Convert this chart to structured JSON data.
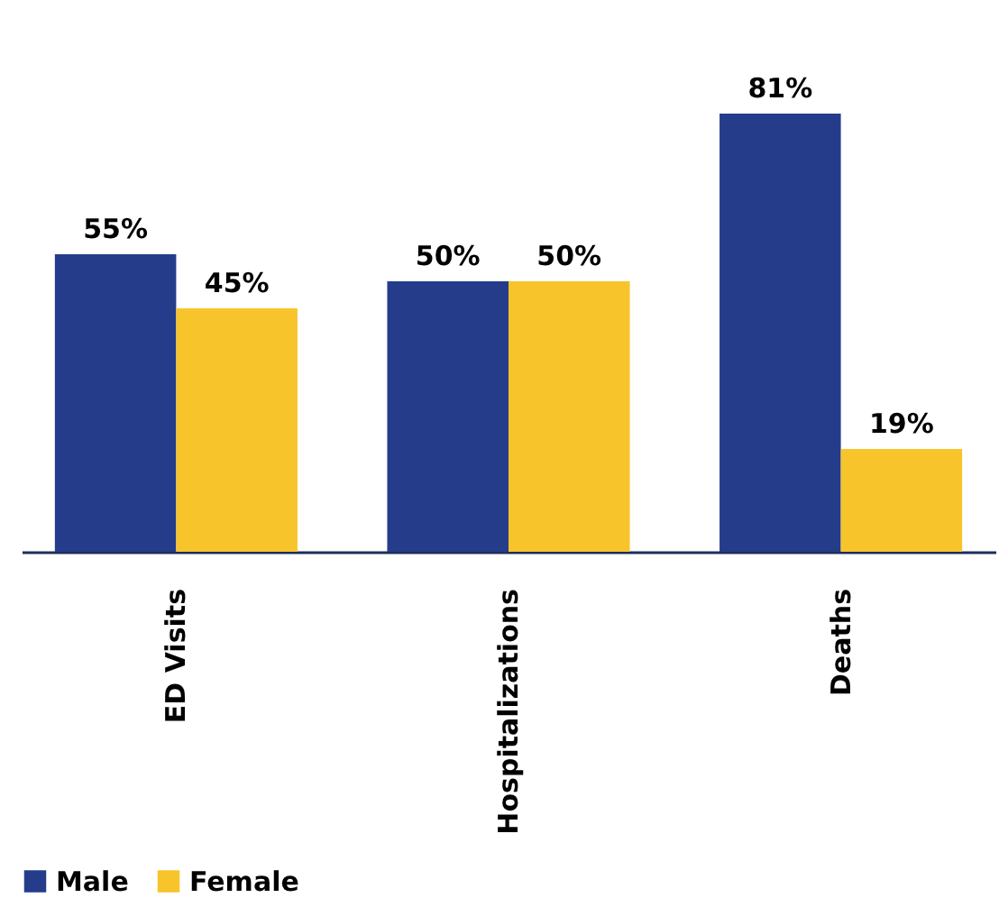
{
  "chart_data": {
    "type": "bar",
    "categories": [
      "ED Visits",
      "Hospitalizations",
      "Deaths"
    ],
    "series": [
      {
        "name": "Male",
        "color": "#253c8b",
        "values": [
          55,
          50,
          81
        ],
        "value_labels": [
          "55%",
          "50%",
          "81%"
        ]
      },
      {
        "name": "Female",
        "color": "#f8c42b",
        "values": [
          45,
          50,
          19
        ],
        "value_labels": [
          "45%",
          "50%",
          "19%"
        ]
      }
    ],
    "legend": "bottom",
    "grid": false
  }
}
